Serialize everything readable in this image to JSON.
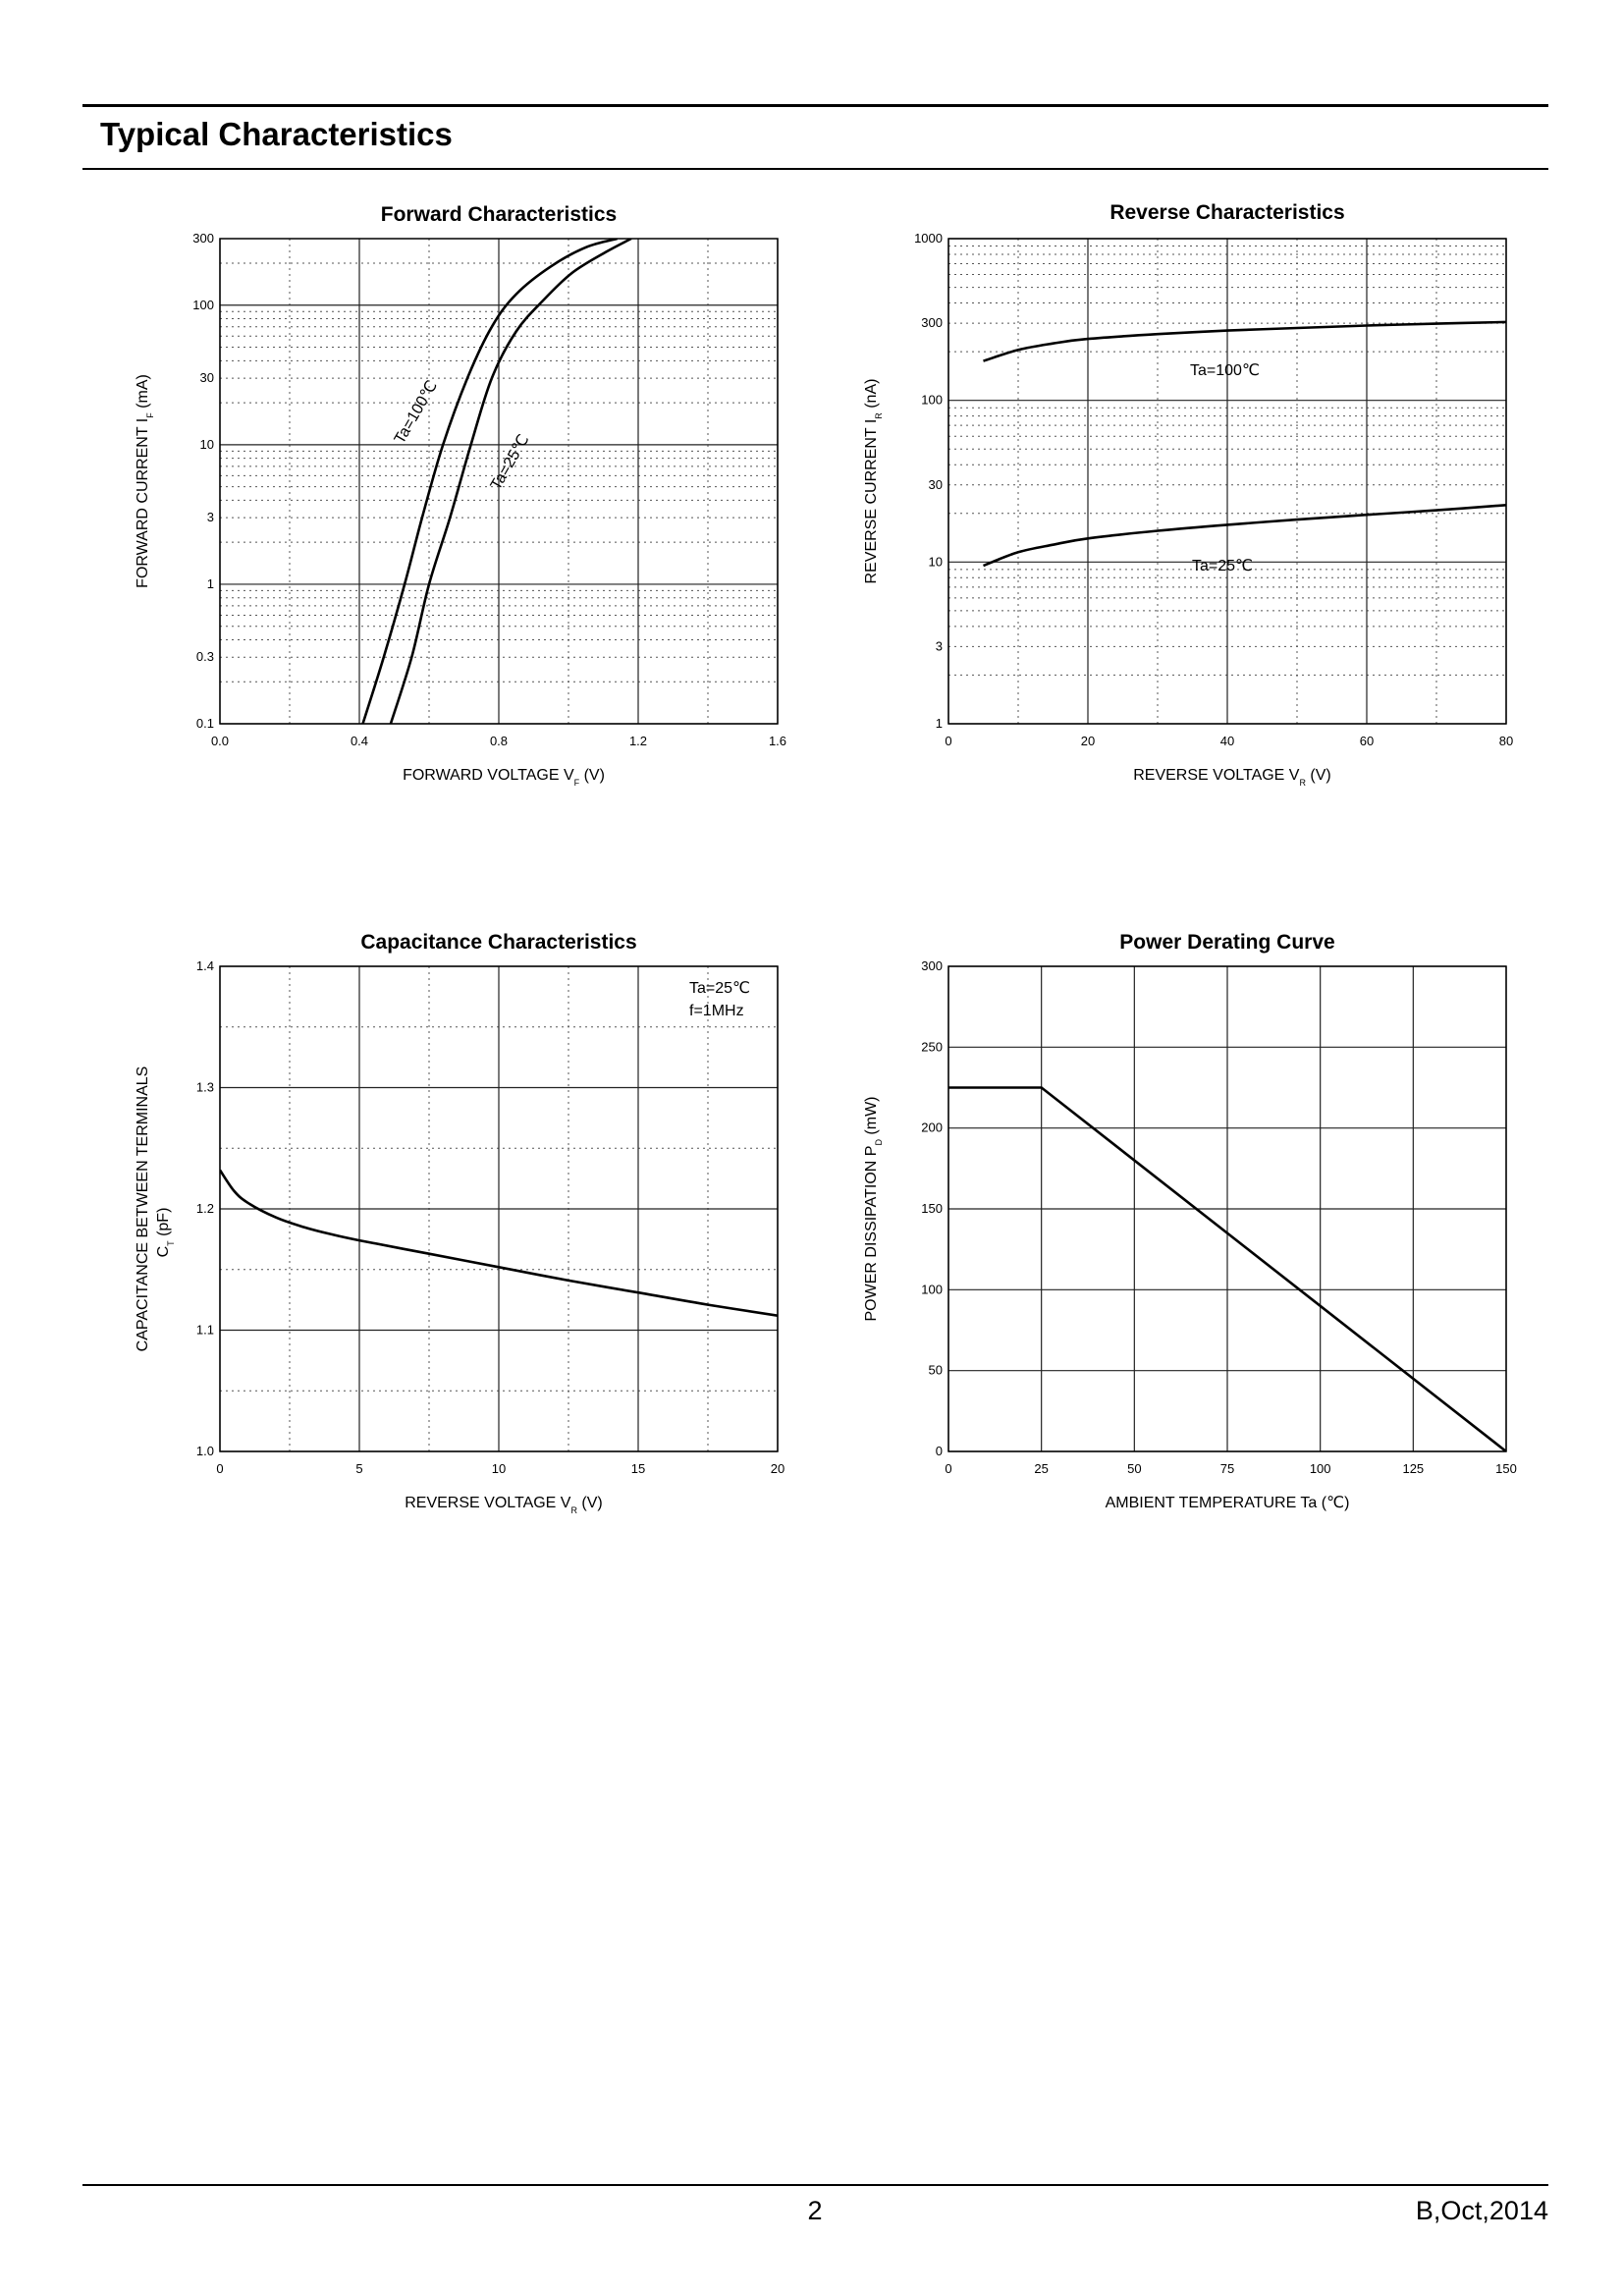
{
  "header": {
    "section_title": "Typical Characteristics"
  },
  "footer": {
    "page_number": "2",
    "revision": "B,Oct,2014"
  },
  "chart_data": [
    {
      "id": "forward",
      "type": "line",
      "title": "Forward    Characteristics",
      "xlabel": "FORWARD VOLTAGE",
      "xsymbol": "V",
      "xsub": "F",
      "xunit": "(V)",
      "ylabel": "FORWARD CURRENT",
      "ysymbol": "I",
      "ysub": "F",
      "yunit": "(mA)",
      "xscale": "linear",
      "yscale": "log",
      "xlim": [
        0,
        1.6
      ],
      "ylim": [
        0.1,
        300
      ],
      "xticks": [
        0,
        0.4,
        0.8,
        1.2,
        1.6
      ],
      "xtick_labels": [
        "0.0",
        "0.4",
        "0.8",
        "1.2",
        "1.6"
      ],
      "yticks": [
        0.1,
        0.3,
        1,
        3,
        10,
        30,
        100,
        300
      ],
      "ytick_labels": [
        "0.1",
        "0.3",
        "1",
        "3",
        "10",
        "30",
        "100",
        "300"
      ],
      "series": [
        {
          "name": "Ta=100℃",
          "x": [
            0.41,
            0.47,
            0.53,
            0.58,
            0.64,
            0.71,
            0.78,
            0.85,
            0.95,
            1.05,
            1.14
          ],
          "y": [
            0.1,
            0.3,
            1,
            3,
            10,
            30,
            70,
            120,
            190,
            260,
            300
          ]
        },
        {
          "name": "Ta=25℃",
          "x": [
            0.49,
            0.55,
            0.6,
            0.66,
            0.72,
            0.78,
            0.85,
            0.93,
            1.01,
            1.1,
            1.18
          ],
          "y": [
            0.1,
            0.3,
            1,
            3,
            10,
            30,
            65,
            110,
            170,
            235,
            300
          ]
        }
      ],
      "annotations": [
        "Ta=100℃",
        "Ta=25℃"
      ]
    },
    {
      "id": "reverse",
      "type": "line",
      "title": "Reverse    Characteristics",
      "xlabel": "REVERSE VOLTAGE",
      "xsymbol": "V",
      "xsub": "R",
      "xunit": "(V)",
      "ylabel": "REVERSE CURRENT",
      "ysymbol": "I",
      "ysub": "R",
      "yunit": "(nA)",
      "xscale": "linear",
      "yscale": "log",
      "xlim": [
        0,
        80
      ],
      "ylim": [
        1,
        1000
      ],
      "xticks": [
        0,
        20,
        40,
        60,
        80
      ],
      "xtick_labels": [
        "0",
        "20",
        "40",
        "60",
        "80"
      ],
      "yticks": [
        1,
        3,
        10,
        30,
        100,
        300,
        1000
      ],
      "ytick_labels": [
        "1",
        "3",
        "10",
        "30",
        "100",
        "300",
        "1000"
      ],
      "series": [
        {
          "name": "Ta=100℃",
          "x": [
            5,
            10,
            15,
            20,
            30,
            40,
            50,
            60,
            70,
            80
          ],
          "y": [
            175,
            205,
            225,
            240,
            257,
            270,
            280,
            290,
            298,
            305
          ]
        },
        {
          "name": "Ta=25℃",
          "x": [
            5,
            10,
            15,
            20,
            30,
            40,
            50,
            60,
            70,
            80
          ],
          "y": [
            9.5,
            11.5,
            12.8,
            14,
            15.6,
            17,
            18.3,
            19.6,
            20.9,
            22.5
          ]
        }
      ],
      "annotations": [
        "Ta=100℃",
        "Ta=25℃"
      ]
    },
    {
      "id": "capacitance",
      "type": "line",
      "title": "Capacitance Characteristics",
      "xlabel": "REVERSE VOLTAGE",
      "xsymbol": "V",
      "xsub": "R",
      "xunit": "(V)",
      "ylabel": "CAPACITANCE BETWEEN TERMINALS",
      "ysymbol": "C",
      "ysub": "T",
      "yunit": "(pF)",
      "xscale": "linear",
      "yscale": "linear",
      "xlim": [
        0,
        20
      ],
      "ylim": [
        1.0,
        1.4
      ],
      "xticks": [
        0,
        5,
        10,
        15,
        20
      ],
      "xtick_labels": [
        "0",
        "5",
        "10",
        "15",
        "20"
      ],
      "yticks": [
        1.0,
        1.1,
        1.2,
        1.3,
        1.4
      ],
      "ytick_labels": [
        "1.0",
        "1.1",
        "1.2",
        "1.3",
        "1.4"
      ],
      "series": [
        {
          "name": "Ta=25℃ f=1MHz",
          "x": [
            0,
            0.5,
            1,
            2,
            3,
            4,
            5,
            7.5,
            10,
            12.5,
            15,
            17.5,
            20
          ],
          "y": [
            1.232,
            1.215,
            1.205,
            1.193,
            1.185,
            1.179,
            1.174,
            1.163,
            1.152,
            1.141,
            1.131,
            1.121,
            1.112
          ]
        }
      ],
      "annotations": [
        "Ta=25℃",
        "f=1MHz"
      ]
    },
    {
      "id": "derating",
      "type": "line",
      "title": "Power Derating Curve",
      "xlabel": "AMBIENT TEMPERATURE",
      "xsymbol": "Ta",
      "xsub": "",
      "xunit": "(℃)",
      "ylabel": "POWER DISSIPATION",
      "ysymbol": "P",
      "ysub": "D",
      "yunit": "(mW)",
      "xscale": "linear",
      "yscale": "linear",
      "xlim": [
        0,
        150
      ],
      "ylim": [
        0,
        300
      ],
      "xticks": [
        0,
        25,
        50,
        75,
        100,
        125,
        150
      ],
      "xtick_labels": [
        "0",
        "25",
        "50",
        "75",
        "100",
        "125",
        "150"
      ],
      "yticks": [
        0,
        50,
        100,
        150,
        200,
        250,
        300
      ],
      "ytick_labels": [
        "0",
        "50",
        "100",
        "150",
        "200",
        "250",
        "300"
      ],
      "series": [
        {
          "name": "PD",
          "x": [
            0,
            25,
            150
          ],
          "y": [
            225,
            225,
            0
          ]
        }
      ],
      "annotations": []
    }
  ]
}
